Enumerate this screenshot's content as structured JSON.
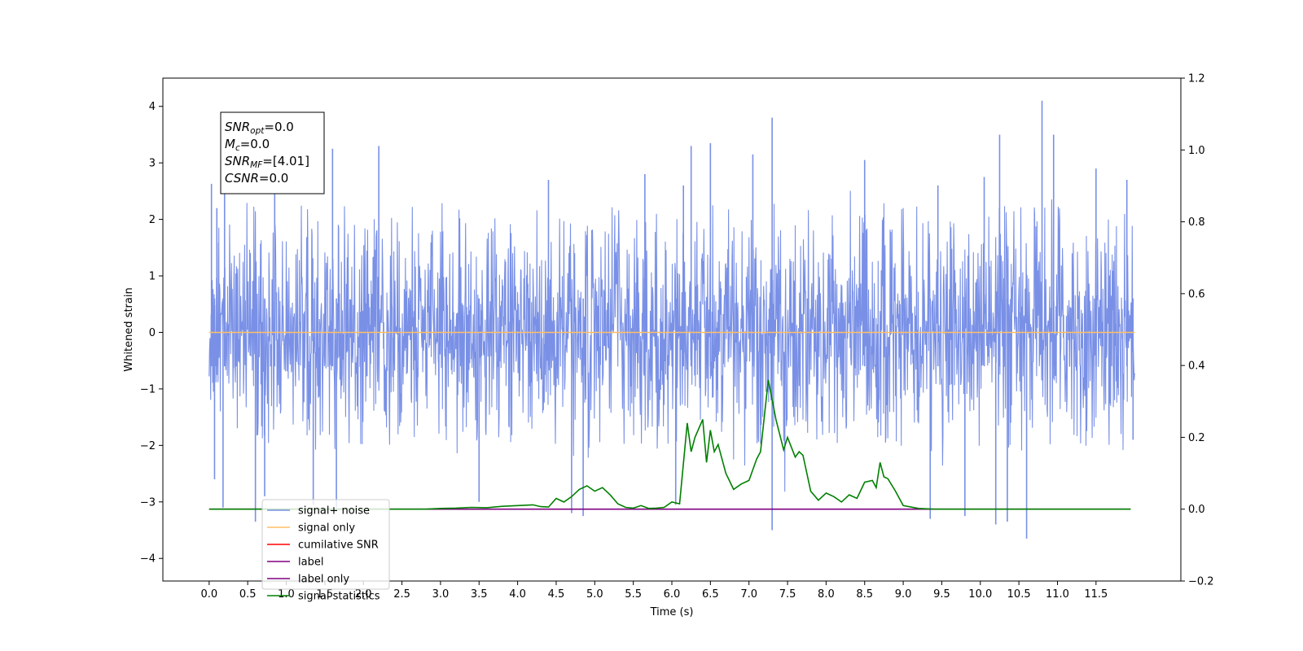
{
  "chart_data": {
    "type": "line",
    "xlabel": "Time (s)",
    "ylabel": "Whitened strain",
    "xlim": [
      -0.6,
      12.6
    ],
    "ylim": [
      -4.4,
      4.5
    ],
    "y2lim": [
      -0.2,
      1.2
    ],
    "x_ticks": [
      0.0,
      0.5,
      1.0,
      1.5,
      2.0,
      2.5,
      3.0,
      3.5,
      4.0,
      4.5,
      5.0,
      5.5,
      6.0,
      6.5,
      7.0,
      7.5,
      8.0,
      8.5,
      9.0,
      9.5,
      10.0,
      10.5,
      11.0,
      11.5
    ],
    "x_tick_labels": [
      "0.0",
      "0.5",
      "1.0",
      "1.5",
      "2.0",
      "2.5",
      "3.0",
      "3.5",
      "4.0",
      "4.5",
      "5.0",
      "5.5",
      "6.0",
      "6.5",
      "7.0",
      "7.5",
      "8.0",
      "8.5",
      "9.0",
      "9.5",
      "10.0",
      "10.5",
      "11.0",
      "11.5"
    ],
    "y_ticks": [
      -4,
      -3,
      -2,
      -1,
      0,
      1,
      2,
      3,
      4
    ],
    "y_tick_labels": [
      "−4",
      "−3",
      "−2",
      "−1",
      "0",
      "1",
      "2",
      "3",
      "4"
    ],
    "y2_ticks": [
      -0.2,
      0.0,
      0.2,
      0.4,
      0.6,
      0.8,
      1.0,
      1.2
    ],
    "y2_tick_labels": [
      "−0.2",
      "0.0",
      "0.2",
      "0.4",
      "0.6",
      "0.8",
      "1.0",
      "1.2"
    ],
    "grid": false,
    "legend_position": "bottom-left",
    "info_box": {
      "position": "top-left",
      "lines": [
        {
          "name": "SNR",
          "sub": "opt",
          "value": "=0.0"
        },
        {
          "name": "M",
          "sub": "c",
          "value": "=0.0"
        },
        {
          "name": "SNR",
          "sub": "MF",
          "value": "=[4.01]"
        },
        {
          "name": "CSNR",
          "sub": "",
          "value": "=0.0"
        }
      ]
    },
    "series": [
      {
        "name": "signal+ noise",
        "axis": "left",
        "color": "#7990e6",
        "render": "noise",
        "x_range": [
          0.0,
          12.0
        ],
        "typical_upper": [
          1.3,
          2.3
        ],
        "typical_lower": [
          -1.1,
          -2.1
        ],
        "peaks": [
          [
            0.03,
            2.63
          ],
          [
            0.1,
            2.2
          ],
          [
            0.2,
            2.6
          ],
          [
            0.85,
            2.9
          ],
          [
            1.6,
            3.25
          ],
          [
            2.2,
            3.3
          ],
          [
            4.4,
            2.7
          ],
          [
            5.65,
            2.8
          ],
          [
            6.15,
            2.6
          ],
          [
            6.25,
            3.3
          ],
          [
            6.5,
            3.35
          ],
          [
            7.05,
            3.15
          ],
          [
            7.3,
            3.8
          ],
          [
            8.5,
            3.05
          ],
          [
            9.45,
            2.6
          ],
          [
            10.05,
            2.75
          ],
          [
            10.25,
            3.5
          ],
          [
            10.8,
            4.1
          ],
          [
            10.95,
            3.5
          ],
          [
            11.5,
            2.9
          ],
          [
            11.9,
            2.7
          ]
        ],
        "troughs": [
          [
            0.07,
            -2.6
          ],
          [
            0.18,
            -3.1
          ],
          [
            0.6,
            -3.35
          ],
          [
            0.72,
            -2.9
          ],
          [
            1.35,
            -3.05
          ],
          [
            1.65,
            -3.1
          ],
          [
            3.5,
            -3.0
          ],
          [
            4.7,
            -3.2
          ],
          [
            4.85,
            -3.25
          ],
          [
            6.05,
            -3.05
          ],
          [
            7.3,
            -3.5
          ],
          [
            9.35,
            -3.3
          ],
          [
            9.8,
            -3.25
          ],
          [
            10.2,
            -3.4
          ],
          [
            10.35,
            -3.35
          ],
          [
            10.6,
            -3.65
          ],
          [
            11.98,
            -1.9
          ]
        ]
      },
      {
        "name": "signal only",
        "axis": "left",
        "color": "#ffbf66",
        "x": [
          0.0,
          12.0
        ],
        "y": [
          0.0,
          0.0
        ]
      },
      {
        "name": "cumilative SNR",
        "axis": "right",
        "color": "#ff0000",
        "x": [],
        "y": []
      },
      {
        "name": "label",
        "axis": "right",
        "color": "#800080",
        "x": [
          0.0,
          11.95
        ],
        "y": [
          0.0,
          0.0
        ]
      },
      {
        "name": "label only",
        "axis": "right",
        "color": "#800080",
        "x": [],
        "y": []
      },
      {
        "name": "signal statistics",
        "axis": "right",
        "color": "#008000",
        "x": [
          0.0,
          1.0,
          2.0,
          2.8,
          3.0,
          3.2,
          3.4,
          3.6,
          3.8,
          4.0,
          4.2,
          4.3,
          4.4,
          4.5,
          4.6,
          4.7,
          4.8,
          4.9,
          5.0,
          5.1,
          5.2,
          5.3,
          5.4,
          5.5,
          5.6,
          5.7,
          5.8,
          5.9,
          6.0,
          6.1,
          6.2,
          6.25,
          6.3,
          6.4,
          6.45,
          6.5,
          6.55,
          6.6,
          6.7,
          6.8,
          6.9,
          7.0,
          7.1,
          7.15,
          7.25,
          7.35,
          7.45,
          7.5,
          7.6,
          7.65,
          7.7,
          7.8,
          7.9,
          8.0,
          8.1,
          8.2,
          8.3,
          8.4,
          8.5,
          8.6,
          8.65,
          8.7,
          8.75,
          8.8,
          8.9,
          9.0,
          9.2,
          9.4,
          10.0,
          11.0,
          11.95
        ],
        "y": [
          0.0,
          0.0,
          0.0,
          0.0,
          0.002,
          0.003,
          0.005,
          0.004,
          0.008,
          0.01,
          0.012,
          0.007,
          0.006,
          0.03,
          0.02,
          0.035,
          0.055,
          0.065,
          0.05,
          0.06,
          0.04,
          0.015,
          0.005,
          0.003,
          0.01,
          0.002,
          0.003,
          0.005,
          0.02,
          0.015,
          0.24,
          0.16,
          0.2,
          0.25,
          0.13,
          0.22,
          0.16,
          0.18,
          0.1,
          0.055,
          0.07,
          0.08,
          0.14,
          0.16,
          0.36,
          0.25,
          0.165,
          0.2,
          0.145,
          0.16,
          0.15,
          0.05,
          0.025,
          0.045,
          0.035,
          0.02,
          0.04,
          0.03,
          0.075,
          0.08,
          0.06,
          0.13,
          0.09,
          0.085,
          0.05,
          0.01,
          0.002,
          0.0,
          0.0,
          0.0,
          0.0
        ]
      }
    ]
  }
}
